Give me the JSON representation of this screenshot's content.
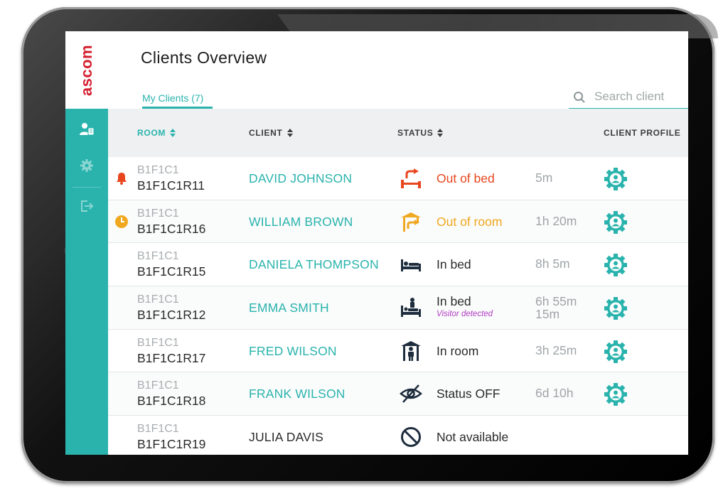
{
  "app": {
    "logo": "ascom",
    "title": "Clients Overview"
  },
  "tabs": [
    {
      "label": "My Clients (7)"
    }
  ],
  "search": {
    "placeholder": "Search client"
  },
  "sidebar": {
    "items": [
      {
        "icon": "clients-icon"
      },
      {
        "icon": "gear-icon"
      },
      {
        "icon": "logout-icon"
      }
    ]
  },
  "table": {
    "columns": {
      "room": "ROOM",
      "client": "CLIENT",
      "status": "STATUS",
      "profile": "CLIENT PROFILE"
    },
    "rows": [
      {
        "room_group": "B1F1C1",
        "room": "B1F1C1R11",
        "client": "DAVID JOHNSON",
        "status": "Out of bed",
        "sub": "",
        "duration": "5m",
        "duration2": "",
        "alert": "bell-icon",
        "status_icon": "out-of-bed-icon",
        "status_color": "#e8461e",
        "client_color": "#2ab3ad",
        "profile": true
      },
      {
        "room_group": "B1F1C1",
        "room": "B1F1C1R16",
        "client": "WILLIAM BROWN",
        "status": "Out of room",
        "sub": "",
        "duration": "1h 20m",
        "duration2": "",
        "alert": "clock-icon",
        "status_icon": "out-of-room-icon",
        "status_color": "#f0a820",
        "client_color": "#2ab3ad",
        "profile": true
      },
      {
        "room_group": "B1F1C1",
        "room": "B1F1C1R15",
        "client": "DANIELA THOMPSON",
        "status": "In bed",
        "sub": "",
        "duration": "8h 5m",
        "duration2": "",
        "alert": "",
        "status_icon": "in-bed-icon",
        "status_color": "#2a2a2a",
        "client_color": "#2ab3ad",
        "profile": true
      },
      {
        "room_group": "B1F1C1",
        "room": "B1F1C1R12",
        "client": "EMMA SMITH",
        "status": "In bed",
        "sub": "Visitor detected",
        "duration": "6h 55m",
        "duration2": "15m",
        "alert": "",
        "status_icon": "in-bed-visitor-icon",
        "status_color": "#2a2a2a",
        "client_color": "#2ab3ad",
        "profile": true
      },
      {
        "room_group": "B1F1C1",
        "room": "B1F1C1R17",
        "client": "FRED WILSON",
        "status": "In room",
        "sub": "",
        "duration": "3h 25m",
        "duration2": "",
        "alert": "",
        "status_icon": "in-room-icon",
        "status_color": "#2a2a2a",
        "client_color": "#2ab3ad",
        "profile": true
      },
      {
        "room_group": "B1F1C1",
        "room": "B1F1C1R18",
        "client": "FRANK WILSON",
        "status": "Status OFF",
        "sub": "",
        "duration": "6d 10h",
        "duration2": "",
        "alert": "",
        "status_icon": "eye-off-icon",
        "status_color": "#2a2a2a",
        "client_color": "#2ab3ad",
        "profile": true
      },
      {
        "room_group": "B1F1C1",
        "room": "B1F1C1R19",
        "client": "JULIA DAVIS",
        "status": "Not available",
        "sub": "",
        "duration": "",
        "duration2": "",
        "alert": "",
        "status_icon": "not-available-icon",
        "status_color": "#2a2a2a",
        "client_color": "#2a2a2a",
        "profile": false
      }
    ]
  },
  "colors": {
    "accent": "#2ab3ad",
    "brand": "#d52030",
    "alert_red": "#e8461e",
    "alert_orange": "#f0a820",
    "visitor": "#b13cc4"
  }
}
